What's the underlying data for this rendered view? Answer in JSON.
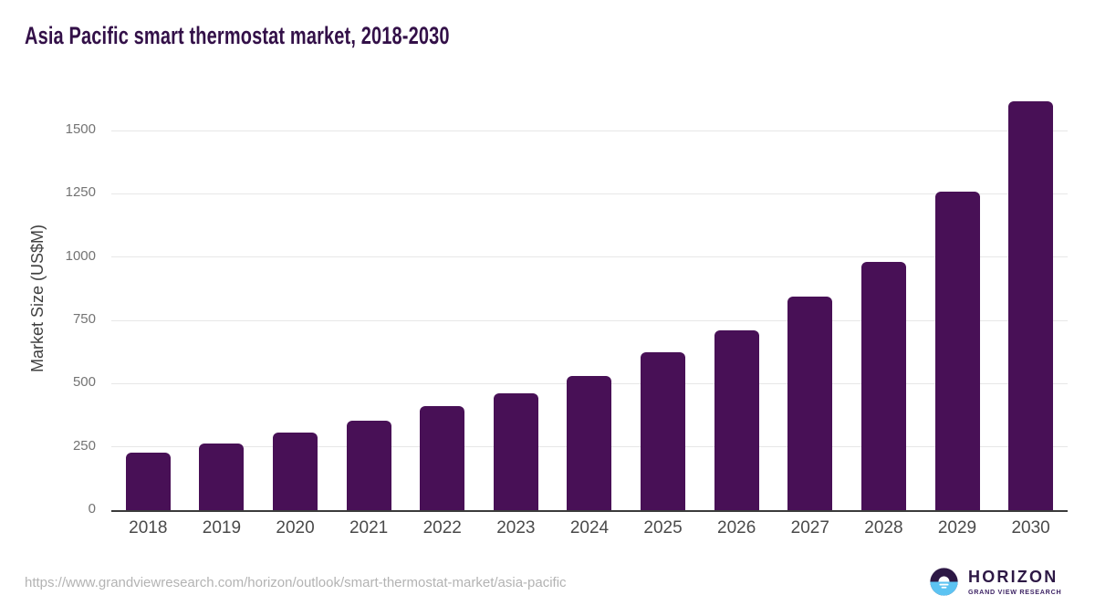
{
  "header": {
    "title": "Asia Pacific smart thermostat market, 2018-2030"
  },
  "chart_data": {
    "type": "bar",
    "title": "Asia Pacific smart thermostat market, 2018-2030",
    "categories": [
      "2018",
      "2019",
      "2020",
      "2021",
      "2022",
      "2023",
      "2024",
      "2025",
      "2026",
      "2027",
      "2028",
      "2029",
      "2030"
    ],
    "values": [
      228,
      265,
      308,
      355,
      410,
      460,
      531,
      623,
      712,
      845,
      980,
      1260,
      1615
    ],
    "xlabel": "",
    "ylabel": "Market Size (US$M)",
    "yticks": [
      0,
      250,
      500,
      750,
      1000,
      1250,
      1500
    ],
    "ylim": [
      0,
      1673
    ],
    "grid": true,
    "legend": "none",
    "bar_color": "#481056"
  },
  "footer": {
    "source_url": "https://www.grandviewresearch.com/horizon/outlook/smart-thermostat-market/asia-pacific",
    "logo": {
      "icon": "horizon-sun-logo-icon",
      "name": "HORIZON",
      "subtitle": "GRAND VIEW RESEARCH"
    }
  },
  "colors": {
    "bar": "#481056",
    "title": "#331048",
    "gridline": "#e7e7e7",
    "axis_line": "#3b3b3b",
    "logo_dark_purple": "#2d1845",
    "logo_light_blue": "#5cc3f2"
  }
}
